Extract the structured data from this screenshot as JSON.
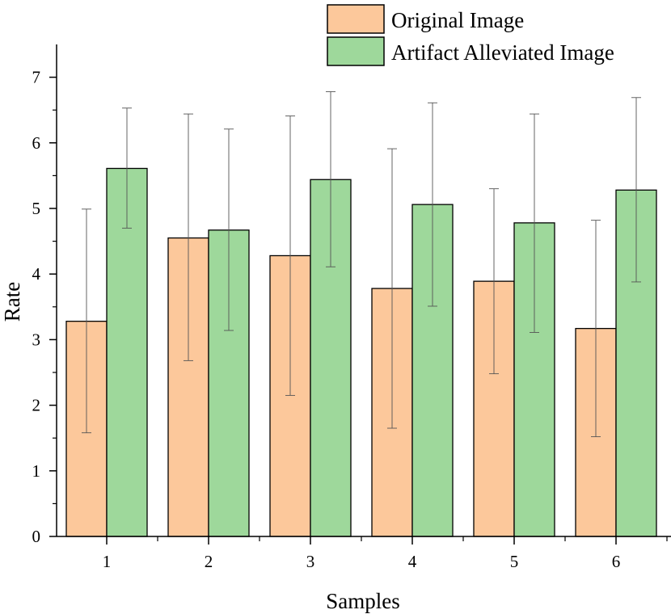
{
  "chart_data": {
    "type": "bar",
    "categories": [
      "1",
      "2",
      "3",
      "4",
      "5",
      "6"
    ],
    "series": [
      {
        "name": "Original Image",
        "color": "#fcc89b",
        "values": [
          3.28,
          4.55,
          4.28,
          3.78,
          3.89,
          3.17
        ],
        "error_low": [
          1.58,
          2.68,
          2.15,
          1.65,
          2.48,
          1.52
        ],
        "error_high": [
          4.99,
          6.44,
          6.41,
          5.91,
          5.3,
          4.82
        ]
      },
      {
        "name": "Artifact Alleviated Image",
        "color": "#9ed89b",
        "values": [
          5.61,
          4.67,
          5.44,
          5.06,
          4.78,
          5.28
        ],
        "error_low": [
          4.7,
          3.14,
          4.11,
          3.51,
          3.11,
          3.88
        ],
        "error_high": [
          6.53,
          6.21,
          6.78,
          6.61,
          6.44,
          6.69
        ]
      }
    ],
    "xlabel": "Samples",
    "ylabel": "Rate",
    "ylim": [
      0,
      7.5
    ],
    "yticks": [
      "0",
      "1",
      "2",
      "3",
      "4",
      "5",
      "6",
      "7"
    ],
    "grid": false,
    "legend_position": "top-right"
  }
}
